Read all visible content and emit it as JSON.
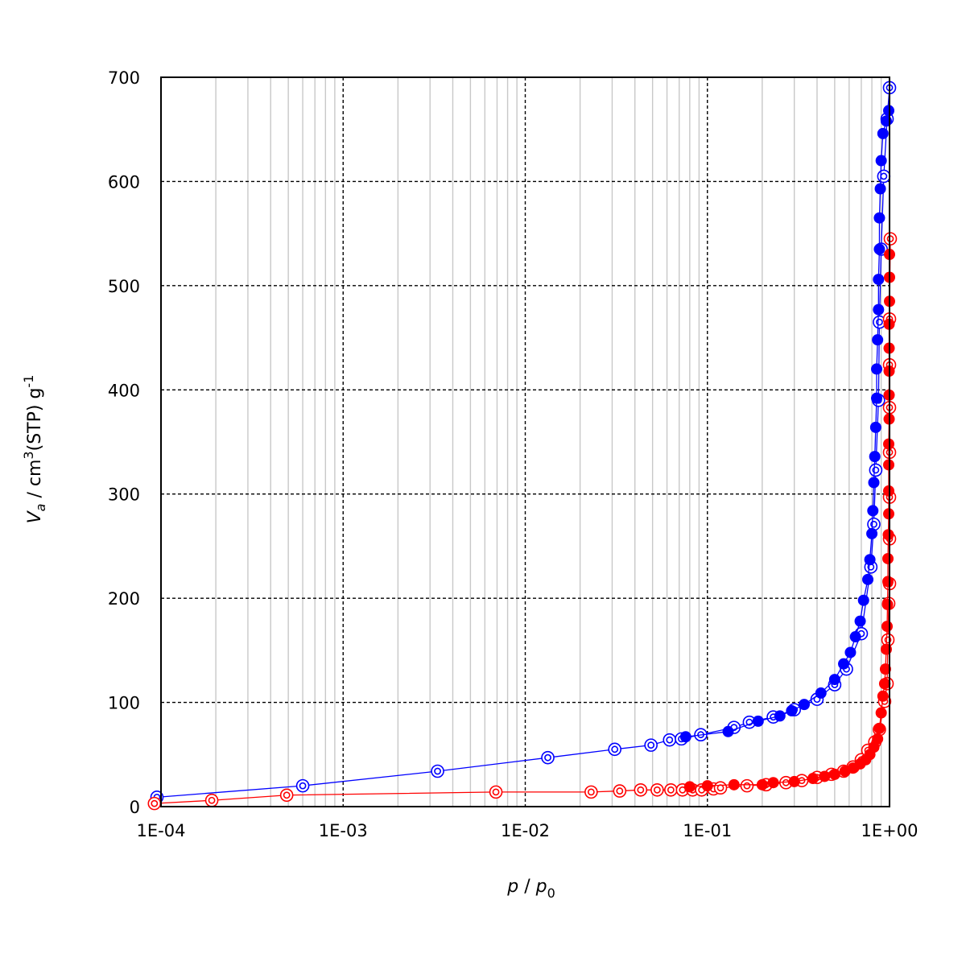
{
  "chart_data": {
    "type": "scatter",
    "x_scale": "log",
    "xlim": [
      0.0001,
      1
    ],
    "ylim": [
      0,
      700
    ],
    "grid": "major dashed, minor solid light gray",
    "legend": "none",
    "xlabel": {
      "p1": "p",
      "sep": " / ",
      "p2": "p",
      "sub": "0"
    },
    "ylabel": {
      "v": "V",
      "vsub": "a",
      "rest": " / cm",
      "sup3": "3",
      "stp": "(STP) g",
      "supm1": "-1"
    },
    "x_ticks": [
      {
        "value": 0.0001,
        "label": "1E-04"
      },
      {
        "value": 0.001,
        "label": "1E-03"
      },
      {
        "value": 0.01,
        "label": "1E-02"
      },
      {
        "value": 0.1,
        "label": "1E-01"
      },
      {
        "value": 1,
        "label": "1E+00"
      }
    ],
    "y_ticks": [
      {
        "value": 0,
        "label": "0"
      },
      {
        "value": 100,
        "label": "100"
      },
      {
        "value": 200,
        "label": "200"
      },
      {
        "value": 300,
        "label": "300"
      },
      {
        "value": 400,
        "label": "400"
      },
      {
        "value": 500,
        "label": "500"
      },
      {
        "value": 600,
        "label": "600"
      },
      {
        "value": 700,
        "label": "700"
      }
    ],
    "series": [
      {
        "color": "#0000ff",
        "marker": "open-double-circle",
        "points": [
          [
            9.5e-05,
            9
          ],
          [
            0.0006,
            20
          ],
          [
            0.0033,
            34
          ],
          [
            0.0133,
            47
          ],
          [
            0.031,
            55
          ],
          [
            0.049,
            59
          ],
          [
            0.062,
            64
          ],
          [
            0.072,
            65
          ],
          [
            0.092,
            69
          ],
          [
            0.14,
            76
          ],
          [
            0.17,
            81
          ],
          [
            0.23,
            86
          ],
          [
            0.3,
            93
          ],
          [
            0.4,
            103
          ],
          [
            0.5,
            117
          ],
          [
            0.58,
            132
          ],
          [
            0.7,
            166
          ],
          [
            0.79,
            230
          ],
          [
            0.82,
            271
          ],
          [
            0.84,
            323
          ],
          [
            0.87,
            390
          ],
          [
            0.88,
            465
          ],
          [
            0.9,
            535
          ],
          [
            0.93,
            605
          ],
          [
            0.97,
            660
          ],
          [
            1.0,
            690
          ]
        ]
      },
      {
        "color": "#0000ff",
        "marker": "filled-circle",
        "points": [
          [
            0.076,
            67
          ],
          [
            0.13,
            72
          ],
          [
            0.19,
            82
          ],
          [
            0.25,
            87
          ],
          [
            0.29,
            92
          ],
          [
            0.34,
            98
          ],
          [
            0.42,
            109
          ],
          [
            0.5,
            122
          ],
          [
            0.56,
            137
          ],
          [
            0.61,
            148
          ],
          [
            0.65,
            163
          ],
          [
            0.69,
            178
          ],
          [
            0.72,
            198
          ],
          [
            0.76,
            218
          ],
          [
            0.78,
            237
          ],
          [
            0.8,
            262
          ],
          [
            0.81,
            284
          ],
          [
            0.82,
            311
          ],
          [
            0.83,
            336
          ],
          [
            0.84,
            364
          ],
          [
            0.85,
            392
          ],
          [
            0.85,
            420
          ],
          [
            0.86,
            448
          ],
          [
            0.87,
            477
          ],
          [
            0.87,
            506
          ],
          [
            0.88,
            535
          ],
          [
            0.88,
            565
          ],
          [
            0.89,
            593
          ],
          [
            0.9,
            620
          ],
          [
            0.92,
            646
          ],
          [
            0.96,
            658
          ],
          [
            0.99,
            668
          ]
        ]
      },
      {
        "color": "#ff0000",
        "marker": "open-double-circle",
        "points": [
          [
            9.2e-05,
            3
          ],
          [
            0.00019,
            6
          ],
          [
            0.00049,
            11
          ],
          [
            0.0069,
            14
          ],
          [
            0.023,
            14
          ],
          [
            0.033,
            15
          ],
          [
            0.043,
            16
          ],
          [
            0.053,
            16
          ],
          [
            0.063,
            16
          ],
          [
            0.073,
            16
          ],
          [
            0.083,
            16
          ],
          [
            0.093,
            16
          ],
          [
            0.108,
            17
          ],
          [
            0.118,
            18
          ],
          [
            0.165,
            20
          ],
          [
            0.21,
            21
          ],
          [
            0.27,
            23
          ],
          [
            0.33,
            25
          ],
          [
            0.4,
            28
          ],
          [
            0.48,
            31
          ],
          [
            0.56,
            34
          ],
          [
            0.63,
            38
          ],
          [
            0.7,
            45
          ],
          [
            0.76,
            54
          ],
          [
            0.83,
            62
          ],
          [
            0.88,
            74
          ],
          [
            0.94,
            101
          ],
          [
            0.97,
            118
          ],
          [
            0.98,
            160
          ],
          [
            0.99,
            195
          ],
          [
            1.0,
            214
          ],
          [
            1.0,
            257
          ],
          [
            1.0,
            297
          ],
          [
            1.0,
            340
          ],
          [
            1.0,
            383
          ],
          [
            1.0,
            424
          ],
          [
            1.0,
            468
          ],
          [
            1.01,
            545
          ]
        ]
      },
      {
        "color": "#ff0000",
        "marker": "filled-circle",
        "points": [
          [
            0.08,
            19
          ],
          [
            0.1,
            20
          ],
          [
            0.14,
            21
          ],
          [
            0.2,
            21
          ],
          [
            0.23,
            23
          ],
          [
            0.3,
            24
          ],
          [
            0.38,
            27
          ],
          [
            0.44,
            29
          ],
          [
            0.5,
            31
          ],
          [
            0.57,
            34
          ],
          [
            0.63,
            37
          ],
          [
            0.69,
            41
          ],
          [
            0.74,
            45
          ],
          [
            0.78,
            50
          ],
          [
            0.82,
            57
          ],
          [
            0.86,
            65
          ],
          [
            0.88,
            75
          ],
          [
            0.9,
            90
          ],
          [
            0.92,
            106
          ],
          [
            0.94,
            118
          ],
          [
            0.95,
            132
          ],
          [
            0.96,
            151
          ],
          [
            0.97,
            173
          ],
          [
            0.975,
            194
          ],
          [
            0.98,
            216
          ],
          [
            0.98,
            238
          ],
          [
            0.985,
            261
          ],
          [
            0.99,
            281
          ],
          [
            0.99,
            303
          ],
          [
            0.99,
            328
          ],
          [
            0.99,
            348
          ],
          [
            0.995,
            372
          ],
          [
            0.995,
            395
          ],
          [
            0.995,
            418
          ],
          [
            0.995,
            440
          ],
          [
            0.995,
            463
          ],
          [
            1.0,
            485
          ],
          [
            1.0,
            508
          ],
          [
            1.0,
            530
          ]
        ]
      }
    ]
  }
}
